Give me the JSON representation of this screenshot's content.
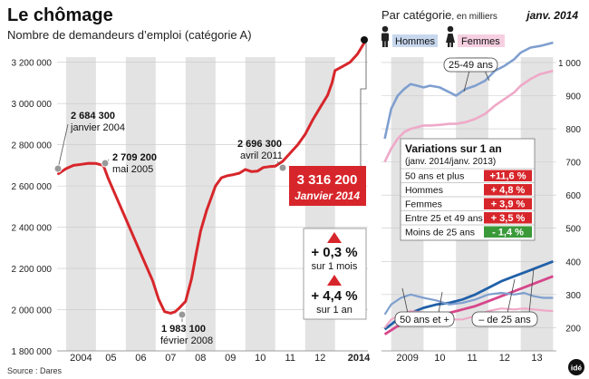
{
  "title": "Le chômage",
  "subtitle": "Nombre de demandeurs d’emploi (catégorie A)",
  "source": "Source : Dares",
  "logo": "idé",
  "colors": {
    "red": "#d7262b",
    "blue": "#2060a8",
    "pink": "#d6468a",
    "lightblue": "#7f9fcf",
    "lightpink": "#efa9c8",
    "green": "#3a9a3a",
    "band": "#e3e3e3"
  },
  "chart_data": [
    {
      "type": "line",
      "title": "Nombre de demandeurs d’emploi (catégorie A)",
      "y_ticks": [
        "3 200 000",
        "3 000 000",
        "2 800 000",
        "2 600 000",
        "2 400 000",
        "2 200 000",
        "2 000 000",
        "1 800 000"
      ],
      "x_ticks": [
        "2004",
        "05",
        "06",
        "07",
        "08",
        "09",
        "10",
        "11",
        "12",
        "2014"
      ],
      "ylim": [
        1800000,
        3300000
      ],
      "x_range": [
        2003.7,
        2014.1
      ],
      "series": [
        {
          "x": [
            2003.75,
            2004.0,
            2004.25,
            2004.5,
            2004.75,
            2005.0,
            2005.25,
            2005.4,
            2005.7,
            2006.0,
            2006.3,
            2006.6,
            2006.9,
            2007.1,
            2007.3,
            2007.5,
            2007.65,
            2007.8,
            2008.0,
            2008.2,
            2008.35,
            2008.5,
            2008.7,
            2008.9,
            2009.0,
            2009.2,
            2009.4,
            2009.6,
            2009.8,
            2010.0,
            2010.2,
            2010.4,
            2010.6,
            2010.8,
            2011.0,
            2011.25,
            2011.5,
            2011.75,
            2012.0,
            2012.25,
            2012.5,
            2012.75,
            2012.9,
            2013.0,
            2013.25,
            2013.5,
            2013.75,
            2014.0
          ],
          "y": [
            2660000,
            2684300,
            2700000,
            2705000,
            2710000,
            2709200,
            2700000,
            2640000,
            2540000,
            2440000,
            2340000,
            2240000,
            2140000,
            2050000,
            1990000,
            1983100,
            1990000,
            2010000,
            2040000,
            2150000,
            2270000,
            2380000,
            2480000,
            2560000,
            2600000,
            2640000,
            2650000,
            2655000,
            2662000,
            2680000,
            2670000,
            2672000,
            2690000,
            2694000,
            2696300,
            2720000,
            2760000,
            2800000,
            2850000,
            2920000,
            2980000,
            3040000,
            3100000,
            3160000,
            3180000,
            3200000,
            3240000,
            3300000
          ]
        }
      ],
      "annotations": [
        {
          "value": "2 684 300",
          "date": "janvier 2004"
        },
        {
          "value": "2 709 200",
          "date": "mai 2005"
        },
        {
          "value": "1 983 100",
          "date": "février 2008"
        },
        {
          "value": "2 696 300",
          "date": "avril 2011"
        }
      ],
      "highlight": {
        "value": "3 316 200",
        "date": "Janvier 2014"
      },
      "changes": [
        {
          "value": "+ 0,3 %",
          "period": "sur 1 mois"
        },
        {
          "value": "+ 4,4 %",
          "period": "sur 1 an"
        }
      ]
    },
    {
      "type": "line",
      "title": "Par catégorie",
      "title_unit": ", en milliers",
      "date_label": "janv. 2014",
      "y_ticks": [
        "1 000",
        "900",
        "800",
        "700",
        "600",
        "500",
        "400",
        "300",
        "200"
      ],
      "ylim": [
        130,
        1060
      ],
      "x_ticks": [
        "2009",
        "10",
        "11",
        "12",
        "13"
      ],
      "x_range": [
        2008.7,
        2014.1
      ],
      "legend": [
        "Hommes",
        "Femmes"
      ],
      "series": [
        {
          "name": "Hommes",
          "group": "25-49 ans",
          "x": [
            2008.8,
            2009.0,
            2009.2,
            2009.4,
            2009.6,
            2009.8,
            2010.0,
            2010.2,
            2010.5,
            2010.8,
            2011.0,
            2011.3,
            2011.6,
            2011.9,
            2012.2,
            2012.5,
            2012.8,
            2013.0,
            2013.3,
            2013.6,
            2014.0
          ],
          "y": [
            770,
            860,
            900,
            920,
            935,
            930,
            925,
            930,
            925,
            910,
            900,
            920,
            930,
            945,
            975,
            990,
            1010,
            1030,
            1045,
            1050,
            1060
          ]
        },
        {
          "name": "Femmes",
          "group": "25-49 ans",
          "x": [
            2008.8,
            2009.0,
            2009.2,
            2009.4,
            2009.6,
            2009.8,
            2010.0,
            2010.2,
            2010.5,
            2010.8,
            2011.0,
            2011.3,
            2011.6,
            2011.9,
            2012.2,
            2012.5,
            2012.8,
            2013.0,
            2013.3,
            2013.6,
            2014.0
          ],
          "y": [
            700,
            740,
            770,
            790,
            800,
            805,
            810,
            810,
            812,
            815,
            815,
            820,
            830,
            845,
            870,
            890,
            910,
            930,
            950,
            965,
            975
          ]
        },
        {
          "name": "Hommes",
          "group": "50 ans et +",
          "x": [
            2008.8,
            2009.2,
            2009.6,
            2010.0,
            2010.4,
            2010.8,
            2011.2,
            2011.6,
            2012.0,
            2012.4,
            2012.8,
            2013.2,
            2013.6,
            2014.0
          ],
          "y": [
            195,
            225,
            245,
            260,
            270,
            275,
            285,
            300,
            320,
            340,
            355,
            370,
            385,
            400
          ]
        },
        {
          "name": "Femmes",
          "group": "50 ans et +",
          "x": [
            2008.8,
            2009.2,
            2009.6,
            2010.0,
            2010.4,
            2010.8,
            2011.2,
            2011.6,
            2012.0,
            2012.4,
            2012.8,
            2013.2,
            2013.6,
            2014.0
          ],
          "y": [
            180,
            205,
            215,
            230,
            240,
            245,
            255,
            265,
            280,
            295,
            310,
            325,
            340,
            355
          ]
        },
        {
          "name": "Hommes",
          "group": "– de 25 ans",
          "x": [
            2008.8,
            2009.0,
            2009.3,
            2009.6,
            2010.0,
            2010.4,
            2010.8,
            2011.2,
            2011.6,
            2012.0,
            2012.4,
            2012.8,
            2013.1,
            2013.4,
            2013.7,
            2014.0
          ],
          "y": [
            240,
            270,
            290,
            300,
            290,
            282,
            270,
            275,
            285,
            300,
            305,
            300,
            305,
            295,
            290,
            290
          ]
        },
        {
          "name": "Femmes",
          "group": "– de 25 ans",
          "x": [
            2008.8,
            2009.0,
            2009.3,
            2009.6,
            2010.0,
            2010.4,
            2010.8,
            2011.2,
            2011.6,
            2012.0,
            2012.4,
            2012.8,
            2013.1,
            2013.4,
            2013.7,
            2014.0
          ],
          "y": [
            200,
            225,
            240,
            250,
            245,
            235,
            225,
            225,
            235,
            250,
            258,
            255,
            258,
            255,
            252,
            250
          ]
        }
      ],
      "series_labels": [
        "25-49 ans",
        "50 ans et +",
        "– de 25 ans"
      ],
      "table": {
        "title": "Variations sur 1 an",
        "subtitle": "(janv. 2014/janv. 2013)",
        "rows": [
          {
            "label": "50 ans et plus",
            "value": "+11,6 %",
            "color": "#d7262b"
          },
          {
            "label": "Hommes",
            "value": "+ 4,8 %",
            "color": "#d7262b"
          },
          {
            "label": "Femmes",
            "value": "+ 3,9 %",
            "color": "#d7262b"
          },
          {
            "label": "Entre 25 et 49 ans",
            "value": "+ 3,5 %",
            "color": "#d7262b"
          },
          {
            "label": "Moins de 25 ans",
            "value": "- 1,4 %",
            "color": "#3a9a3a"
          }
        ]
      }
    }
  ]
}
